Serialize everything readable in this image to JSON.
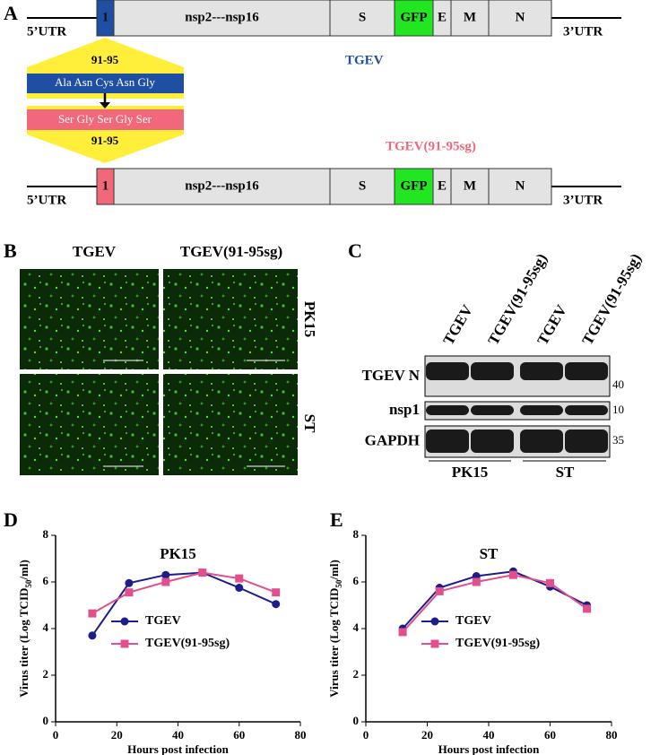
{
  "panels": {
    "a": {
      "letter": "A",
      "genome_segments": [
        "1",
        "nsp2---nsp16",
        "S",
        "GFP",
        "E",
        "M",
        "N"
      ],
      "utr5": "5’UTR",
      "utr3": "3’UTR",
      "site_top": "91-95",
      "wt_residues": "Ala Asn Cys Asn Gly",
      "mut_residues": "Ser Gly Ser Gly Ser",
      "site_bottom": "91-95",
      "wt_name": "TGEV",
      "mut_name": "TGEV(91-95sg)"
    },
    "b": {
      "letter": "B",
      "columns": [
        "TGEV",
        "TGEV(91-95sg)"
      ],
      "rows": [
        "PK15",
        "ST"
      ]
    },
    "c": {
      "letter": "C",
      "lanes": [
        "TGEV",
        "TGEV(91-95sg)",
        "TGEV",
        "TGEV(91-95sg)"
      ],
      "blots": [
        "TGEV N",
        "nsp1",
        "GAPDH"
      ],
      "markers": [
        "40",
        "10",
        "35"
      ],
      "groups": [
        "PK15",
        "ST"
      ]
    },
    "d": {
      "letter": "D"
    },
    "e": {
      "letter": "E"
    }
  },
  "chart_data": [
    {
      "type": "line",
      "title": "PK15",
      "ylabel_parts": [
        "Virus titer (Log TCID",
        "50",
        "/ml)"
      ],
      "xlabel": "Hours post infection",
      "x": [
        12,
        24,
        36,
        48,
        60,
        72
      ],
      "xlim": [
        0,
        80
      ],
      "xticks": [
        0,
        20,
        40,
        60,
        80
      ],
      "ylim": [
        0,
        8
      ],
      "yticks": [
        0,
        2,
        4,
        6,
        8
      ],
      "series": [
        {
          "name": "TGEV",
          "color": "#1c1c8a",
          "marker": "circle",
          "values": [
            3.7,
            5.95,
            6.3,
            6.4,
            5.75,
            5.05
          ]
        },
        {
          "name": "TGEV(91-95sg)",
          "color": "#e0508c",
          "marker": "square",
          "values": [
            4.65,
            5.55,
            6.0,
            6.4,
            6.15,
            5.55
          ]
        }
      ]
    },
    {
      "type": "line",
      "title": "ST",
      "ylabel_parts": [
        "Virus titer (Log TCID",
        "50",
        "/ml)"
      ],
      "xlabel": "Hours post infection",
      "x": [
        12,
        24,
        36,
        48,
        60,
        72
      ],
      "xlim": [
        0,
        80
      ],
      "xticks": [
        0,
        20,
        40,
        60,
        80
      ],
      "ylim": [
        0,
        8
      ],
      "yticks": [
        0,
        2,
        4,
        6,
        8
      ],
      "series": [
        {
          "name": "TGEV",
          "color": "#1c1c8a",
          "marker": "circle",
          "values": [
            4.0,
            5.75,
            6.25,
            6.45,
            5.8,
            5.0
          ]
        },
        {
          "name": "TGEV(91-95sg)",
          "color": "#e0508c",
          "marker": "square",
          "values": [
            3.85,
            5.6,
            6.0,
            6.3,
            5.95,
            4.85
          ]
        }
      ]
    }
  ]
}
